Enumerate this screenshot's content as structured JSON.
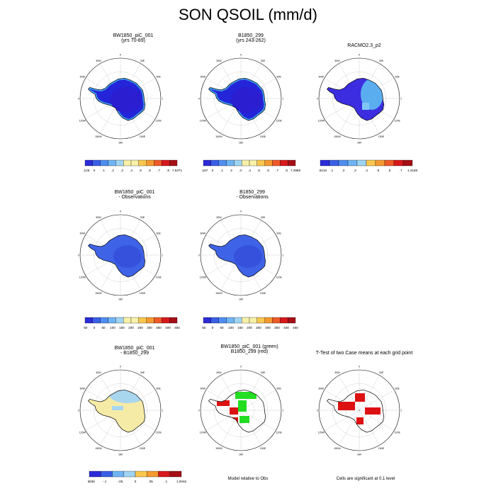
{
  "title": "SON QSOIL (mm/d)",
  "colors": {
    "ocean": "#ffffff",
    "coast": "#000000",
    "green": "#22dd22",
    "red": "#dd1111",
    "light_yellow": "#f6eba6",
    "light_blue": "#a9d6ef"
  },
  "lon_labels": [
    "0",
    "30E",
    "60E",
    "90E",
    "120E",
    "150E",
    "180",
    "150W",
    "120W",
    "90W",
    "60W",
    "30W"
  ],
  "panels": [
    {
      "id": "p1",
      "title1": "BW1850_piC_001",
      "title2": "(yrs 70-89)",
      "style": "blue"
    },
    {
      "id": "p2",
      "title1": "B1850_299",
      "title2": "(yrs 243-262)",
      "style": "blue"
    },
    {
      "id": "p3",
      "title1": "RACMO2.3_p2",
      "title2": "",
      "style": "blue2"
    },
    {
      "id": "p4",
      "title1": "BW1850_piC_001",
      "title2": "- Observations",
      "style": "mid"
    },
    {
      "id": "p5",
      "title1": "B1850_299",
      "title2": "- Observations",
      "style": "mid"
    },
    {
      "id": "p6",
      "title1": "BW1850_piC_001",
      "title2": "- B1850_299",
      "style": "diff"
    },
    {
      "id": "p7",
      "title1": "BW1850_piC_001 (green)",
      "title2": "B1850_299 (red)",
      "style": "rel"
    },
    {
      "id": "p8",
      "title1": "T-Test of two Case means at each grid point",
      "title2": "",
      "style": "ttest"
    }
  ],
  "colorbars": [
    {
      "id": "cb1",
      "labels": [
        "-.1126",
        "0",
        ".1",
        ".2",
        ".3",
        ".4",
        ".5",
        ".6",
        ".7",
        ".8",
        "7.5371"
      ]
    },
    {
      "id": "cb2",
      "labels": [
        "-.1167",
        "0",
        ".1",
        ".2",
        ".3",
        ".4",
        ".5",
        ".6",
        ".7",
        ".8",
        "7.3969"
      ]
    },
    {
      "id": "cb3",
      "labels": [
        "-33.6216",
        ".1",
        ".2",
        ".3",
        ".4",
        ".5",
        ".6",
        ".7",
        "1.4168"
      ]
    },
    {
      "id": "cb4",
      "labels": [
        "-50",
        "0",
        "50",
        "100",
        "150",
        "200",
        "250",
        "300",
        "350",
        "400",
        "450"
      ]
    },
    {
      "id": "cb5",
      "labels": [
        "-50",
        "0",
        "50",
        "100",
        "150",
        "200",
        "250",
        "300",
        "350",
        "400",
        "450"
      ]
    },
    {
      "id": "cb6",
      "labels": [
        "-1.6836",
        "-.1",
        "-.05",
        "0",
        ".05",
        ".1",
        "1.0046"
      ]
    }
  ],
  "notes": {
    "rel": "Model relative to Obs",
    "ttest": "Cells are significant at 0.1 level"
  }
}
